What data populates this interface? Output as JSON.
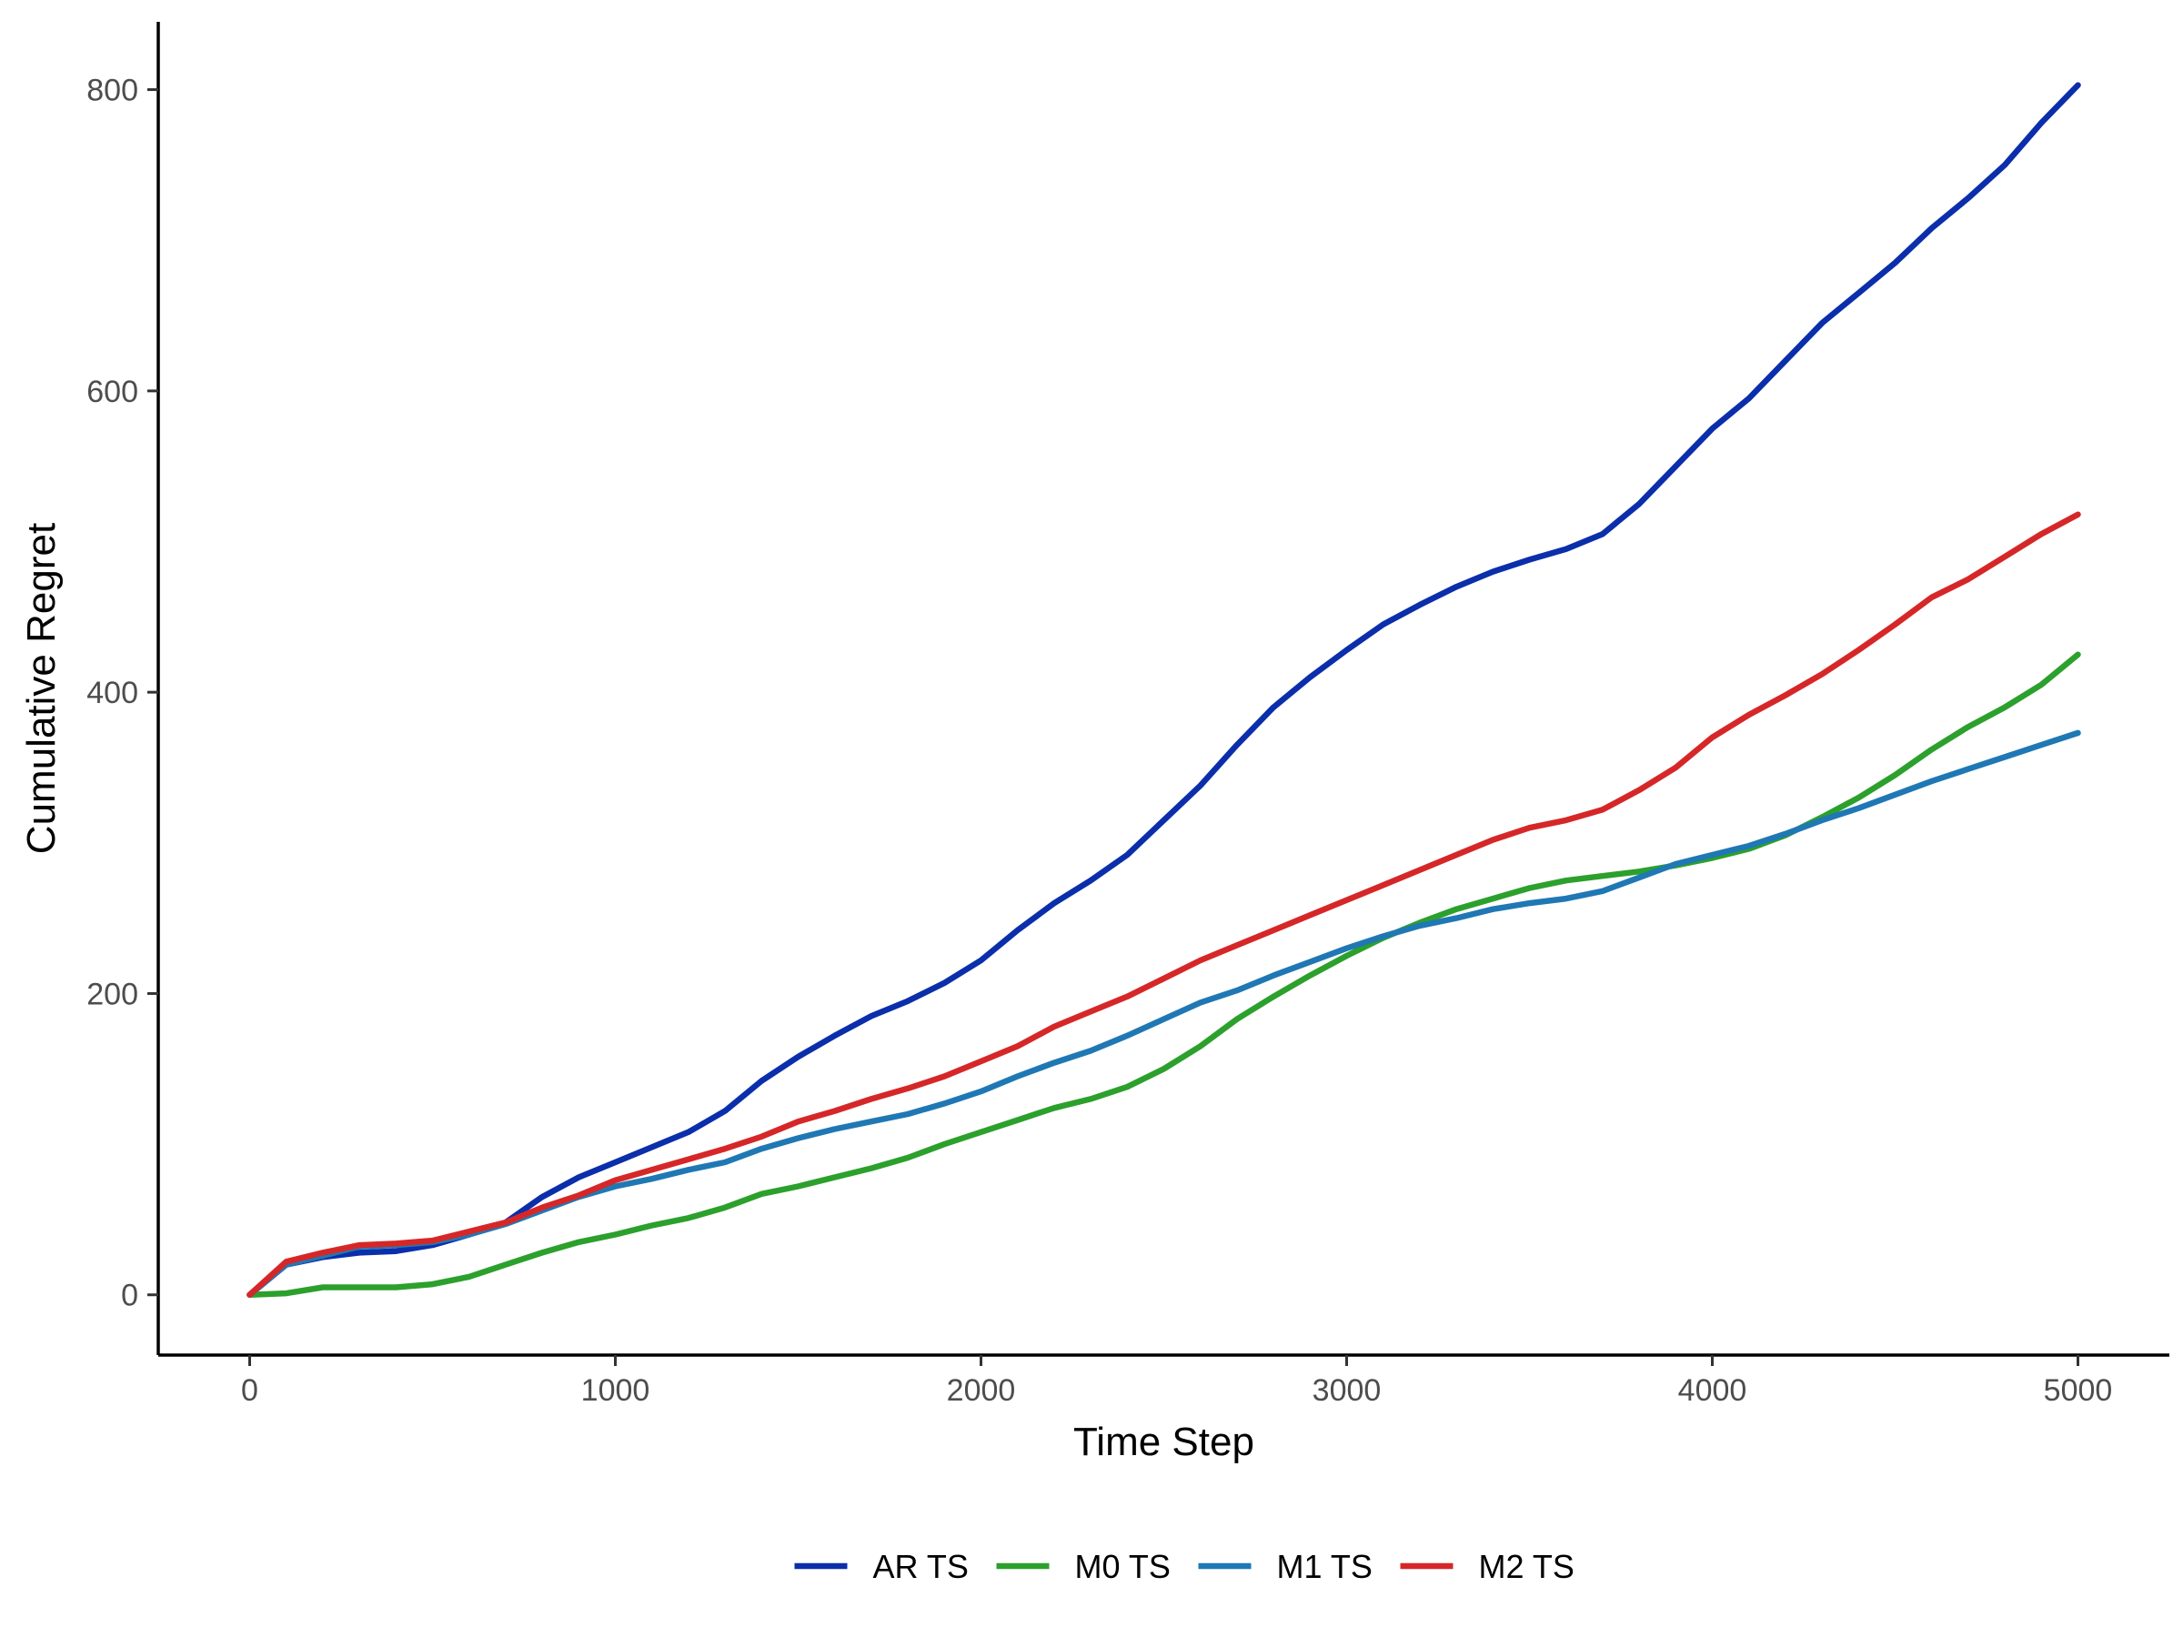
{
  "chart_data": {
    "type": "line",
    "title": "",
    "xlabel": "Time Step",
    "ylabel": "Cumulative Regret",
    "xlim": [
      -250,
      5250
    ],
    "ylim": [
      -40,
      845
    ],
    "xticks": [
      0,
      1000,
      2000,
      3000,
      4000,
      5000
    ],
    "xtick_labels": [
      "0",
      "1000",
      "2000",
      "3000",
      "4000",
      "5000"
    ],
    "yticks": [
      0,
      200,
      400,
      600,
      800
    ],
    "ytick_labels": [
      "0",
      "200",
      "400",
      "600",
      "800"
    ],
    "grid": false,
    "legend_position": "bottom",
    "x": [
      0,
      100,
      200,
      300,
      400,
      500,
      600,
      700,
      800,
      900,
      1000,
      1100,
      1200,
      1300,
      1400,
      1500,
      1600,
      1700,
      1800,
      1900,
      2000,
      2100,
      2200,
      2300,
      2400,
      2500,
      2600,
      2700,
      2800,
      2900,
      3000,
      3100,
      3200,
      3300,
      3400,
      3500,
      3600,
      3700,
      3800,
      3900,
      4000,
      4100,
      4200,
      4300,
      4400,
      4500,
      4600,
      4700,
      4800,
      4900,
      5000
    ],
    "series": [
      {
        "name": "AR TS",
        "color": "#0B2EAB",
        "values": [
          0,
          20,
          25,
          28,
          29,
          33,
          40,
          48,
          65,
          78,
          88,
          98,
          108,
          122,
          142,
          158,
          172,
          185,
          195,
          207,
          222,
          242,
          260,
          275,
          292,
          315,
          338,
          365,
          390,
          410,
          428,
          445,
          458,
          470,
          480,
          488,
          495,
          505,
          525,
          550,
          575,
          595,
          620,
          645,
          665,
          685,
          708,
          728,
          750,
          778,
          803
        ]
      },
      {
        "name": "M0 TS",
        "color": "#2CA02C",
        "values": [
          0,
          1,
          5,
          5,
          5,
          7,
          12,
          20,
          28,
          35,
          40,
          46,
          51,
          58,
          67,
          72,
          78,
          84,
          91,
          100,
          108,
          116,
          124,
          130,
          138,
          150,
          165,
          183,
          198,
          212,
          225,
          237,
          247,
          256,
          263,
          270,
          275,
          278,
          281,
          285,
          290,
          296,
          305,
          317,
          330,
          345,
          362,
          377,
          390,
          405,
          425
        ]
      },
      {
        "name": "M1 TS",
        "color": "#1F78B4",
        "values": [
          0,
          20,
          26,
          32,
          33,
          35,
          40,
          47,
          56,
          65,
          72,
          77,
          83,
          88,
          97,
          104,
          110,
          115,
          120,
          127,
          135,
          145,
          154,
          162,
          172,
          183,
          194,
          202,
          212,
          221,
          230,
          238,
          245,
          250,
          256,
          260,
          263,
          268,
          277,
          286,
          292,
          298,
          306,
          315,
          323,
          332,
          341,
          349,
          357,
          365,
          373
        ]
      },
      {
        "name": "M2 TS",
        "color": "#D62728",
        "values": [
          0,
          22,
          28,
          33,
          34,
          36,
          42,
          48,
          58,
          66,
          76,
          83,
          90,
          97,
          105,
          115,
          122,
          130,
          137,
          145,
          155,
          165,
          178,
          188,
          198,
          210,
          222,
          232,
          242,
          252,
          262,
          272,
          282,
          292,
          302,
          310,
          315,
          322,
          335,
          350,
          370,
          385,
          398,
          412,
          428,
          445,
          463,
          475,
          490,
          505,
          518
        ]
      }
    ]
  }
}
